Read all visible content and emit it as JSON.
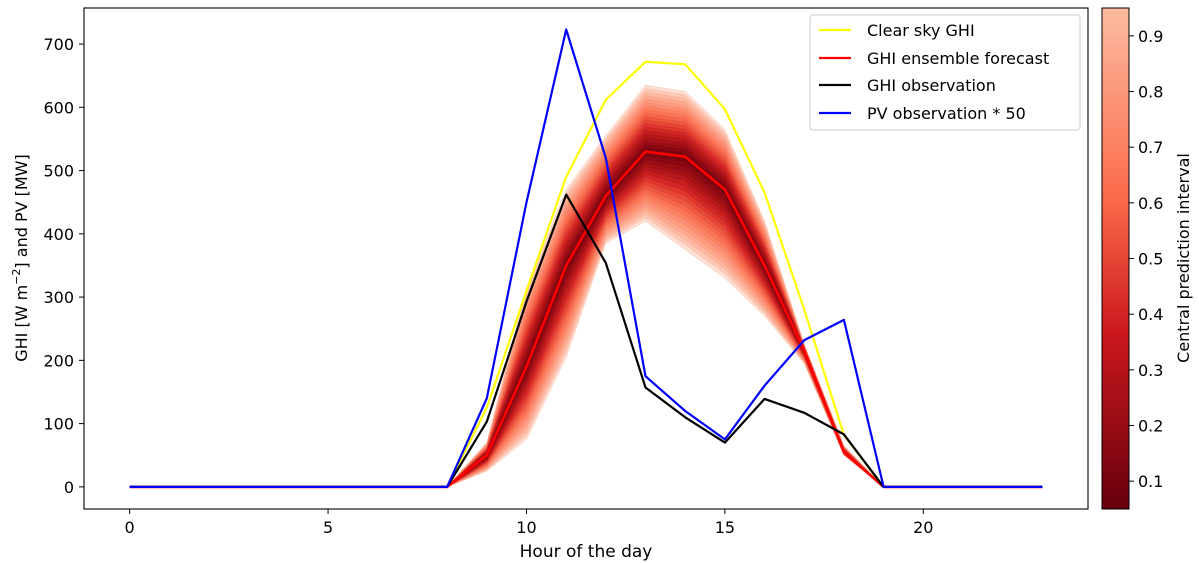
{
  "chart_data": {
    "type": "line",
    "xlabel": "Hour of the day",
    "ylabel_parts": {
      "a": "GHI [W m",
      "sup": "−2",
      "b": "] and PV [MW]"
    },
    "xlim": [
      -1.15,
      24.15
    ],
    "ylim": [
      -35,
      757
    ],
    "x_ticks": [
      0,
      5,
      10,
      15,
      20
    ],
    "y_ticks": [
      0,
      100,
      200,
      300,
      400,
      500,
      600,
      700
    ],
    "x": [
      0,
      1,
      2,
      3,
      4,
      5,
      6,
      7,
      8,
      9,
      10,
      11,
      12,
      13,
      14,
      15,
      16,
      17,
      18,
      19,
      20,
      21,
      22,
      23
    ],
    "series": [
      {
        "name": "Clear sky GHI",
        "color": "#ffff00",
        "values": [
          0,
          0,
          0,
          0,
          0,
          0,
          0,
          0,
          0,
          125,
          310,
          490,
          612,
          672,
          668,
          597,
          465,
          280,
          82,
          0,
          0,
          0,
          0,
          0
        ]
      },
      {
        "name": "GHI ensemble forecast",
        "color": "#ff0000",
        "values": [
          0,
          0,
          0,
          0,
          0,
          0,
          0,
          0,
          0,
          50,
          190,
          350,
          460,
          530,
          522,
          470,
          350,
          215,
          55,
          0,
          0,
          0,
          0,
          0
        ]
      },
      {
        "name": "GHI observation",
        "color": "#000000",
        "values": [
          0,
          0,
          0,
          0,
          0,
          0,
          0,
          0,
          0,
          103,
          293,
          462,
          354,
          157,
          110,
          70,
          139,
          117,
          83,
          0,
          0,
          0,
          0,
          0
        ]
      },
      {
        "name": "PV observation * 50",
        "color": "#0000ff",
        "values": [
          0,
          0,
          0,
          0,
          0,
          0,
          0,
          0,
          0,
          140,
          450,
          723,
          520,
          175,
          120,
          75,
          160,
          232,
          264,
          0,
          0,
          0,
          0,
          0
        ]
      }
    ],
    "prediction_bands": {
      "hours_x": [
        8,
        9,
        10,
        11,
        12,
        13,
        14,
        15,
        16,
        17,
        18,
        19
      ],
      "median": [
        0,
        50,
        190,
        350,
        460,
        530,
        522,
        470,
        350,
        215,
        55,
        0
      ],
      "lower_max": [
        0,
        25,
        75,
        205,
        385,
        420,
        375,
        330,
        270,
        195,
        50,
        0
      ],
      "upper_max": [
        0,
        70,
        315,
        470,
        555,
        635,
        625,
        565,
        420,
        225,
        65,
        0
      ],
      "levels": [
        0.95,
        0.9,
        0.85,
        0.8,
        0.75,
        0.7,
        0.65,
        0.6,
        0.55,
        0.5,
        0.45,
        0.4,
        0.35,
        0.3,
        0.25,
        0.2,
        0.15,
        0.1,
        0.05
      ]
    },
    "colorbar": {
      "label": "Central prediction interval",
      "ticks": [
        0.1,
        0.2,
        0.3,
        0.4,
        0.5,
        0.6,
        0.7,
        0.8,
        0.9
      ],
      "range": [
        0.05,
        0.95
      ],
      "colors": [
        "#67000d",
        "#cb181d",
        "#fb6a4a",
        "#fcbba1"
      ]
    },
    "legend_position": "top-right",
    "grid": false
  }
}
